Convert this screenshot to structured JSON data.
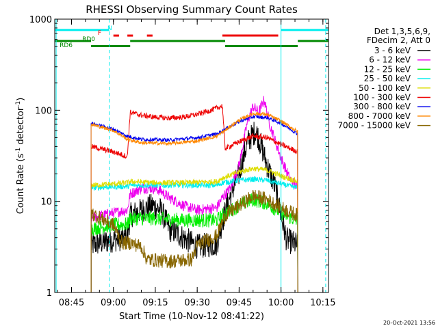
{
  "chart_data": {
    "type": "line",
    "title": "RHESSI Observing Summary Count Rates",
    "xlabel": "Start Time (10-Nov-12 08:41:22)",
    "ylabel_main": "Count Rate (s",
    "ylabel_sup1": "-1",
    "ylabel_mid": " detector",
    "ylabel_sup2": "-1",
    "ylabel_end": ")",
    "y_scale": "log",
    "ylim": [
      1,
      1000
    ],
    "xlim": [
      "08:39",
      "10:17"
    ],
    "x_ticks": [
      "08:45",
      "09:00",
      "09:15",
      "09:30",
      "09:45",
      "10:00",
      "10:15"
    ],
    "y_ticks": [
      "1",
      "10",
      "100",
      "1000"
    ],
    "timestamp": "20-Oct-2021 13:56",
    "legend": {
      "placement": "right",
      "header": [
        "Det 1,3,5,6,9,",
        "FDecim 2, Att 0"
      ],
      "entries": [
        {
          "label": "3 - 6 keV",
          "color": "#000000"
        },
        {
          "label": "6 - 12 keV",
          "color": "#ee00ee"
        },
        {
          "label": "12 - 25 keV",
          "color": "#00ee00"
        },
        {
          "label": "25 - 50 keV",
          "color": "#00eeee"
        },
        {
          "label": "50 - 100 keV",
          "color": "#dddd00"
        },
        {
          "label": "100 - 300 keV",
          "color": "#ee0000"
        },
        {
          "label": "300 - 800 keV",
          "color": "#0000ee"
        },
        {
          "label": "800 - 7000 keV",
          "color": "#ff8800"
        },
        {
          "label": "7000 - 15000 keV",
          "color": "#886600"
        }
      ]
    },
    "flags": [
      {
        "label": "N",
        "color": "#00eeee",
        "level": 760,
        "segments": [
          [
            "08:39",
            "08:58.5"
          ],
          [
            "10:00",
            "10:17"
          ]
        ]
      },
      {
        "label": "F",
        "color": "#ee0000",
        "level": 660,
        "segments": [
          [
            "09:00",
            "09:02"
          ],
          [
            "09:05",
            "09:07"
          ],
          [
            "09:12",
            "09:14"
          ],
          [
            "09:39",
            "09:59"
          ]
        ]
      },
      {
        "label": "RD0",
        "color": "#008800",
        "level": 575,
        "segments": [
          [
            "08:39",
            "08:52"
          ],
          [
            "09:06",
            "09:40"
          ],
          [
            "10:06",
            "10:17"
          ]
        ]
      },
      {
        "label": "RD6",
        "color": "#008800",
        "level": 505,
        "segments": [
          [
            "08:52",
            "09:06"
          ],
          [
            "09:40",
            "10:06"
          ]
        ]
      }
    ],
    "markers": [
      {
        "time": "08:39.5",
        "color": "#00eeee",
        "style": "solid"
      },
      {
        "time": "08:58.5",
        "color": "#00eeee",
        "style": "dashed"
      },
      {
        "time": "10:00",
        "color": "#00eeee",
        "style": "solid"
      },
      {
        "time": "10:16",
        "color": "#00eeee",
        "style": "dashed"
      }
    ],
    "series": [
      {
        "name": "3 - 6 keV",
        "color": "#000000",
        "noise": 0.14,
        "points": [
          [
            "08:52",
            "3.3"
          ],
          [
            "09:00",
            "3.8"
          ],
          [
            "09:05",
            "4.0"
          ],
          [
            "09:06",
            "7"
          ],
          [
            "09:10",
            "8"
          ],
          [
            "09:14",
            "9"
          ],
          [
            "09:17",
            "8"
          ],
          [
            "09:20",
            "5"
          ],
          [
            "09:25",
            "4"
          ],
          [
            "09:30",
            "3.2"
          ],
          [
            "09:37",
            "3.4"
          ],
          [
            "09:39",
            "6"
          ],
          [
            "09:42",
            "12"
          ],
          [
            "09:45",
            "20"
          ],
          [
            "09:48",
            "45"
          ],
          [
            "09:51",
            "60"
          ],
          [
            "09:53",
            "40"
          ],
          [
            "09:55",
            "25"
          ],
          [
            "09:58",
            "14"
          ],
          [
            "10:00",
            "7"
          ],
          [
            "10:02",
            "3.8"
          ],
          [
            "10:06",
            "3.3"
          ]
        ]
      },
      {
        "name": "6 - 12 keV",
        "color": "#ee00ee",
        "noise": 0.06,
        "points": [
          [
            "08:52",
            "6.6"
          ],
          [
            "09:00",
            "7.5"
          ],
          [
            "09:05",
            "8"
          ],
          [
            "09:06",
            "12"
          ],
          [
            "09:10",
            "14"
          ],
          [
            "09:14",
            "14"
          ],
          [
            "09:17",
            "13"
          ],
          [
            "09:20",
            "11"
          ],
          [
            "09:25",
            "9"
          ],
          [
            "09:30",
            "8"
          ],
          [
            "09:37",
            "8.5"
          ],
          [
            "09:39",
            "11"
          ],
          [
            "09:42",
            "14"
          ],
          [
            "09:45",
            "25"
          ],
          [
            "09:48",
            "75"
          ],
          [
            "09:50",
            "110"
          ],
          [
            "09:52",
            "95"
          ],
          [
            "09:54",
            "130"
          ],
          [
            "09:56",
            "70"
          ],
          [
            "09:58",
            "45"
          ],
          [
            "10:00",
            "30"
          ],
          [
            "10:03",
            "18"
          ],
          [
            "10:06",
            "14"
          ]
        ]
      },
      {
        "name": "12 - 25 keV",
        "color": "#00ee00",
        "noise": 0.08,
        "points": [
          [
            "08:52",
            "5"
          ],
          [
            "09:00",
            "5.5"
          ],
          [
            "09:05",
            "5.6"
          ],
          [
            "09:06",
            "6.5"
          ],
          [
            "09:15",
            "6.5"
          ],
          [
            "09:25",
            "6.2"
          ],
          [
            "09:37",
            "6.2"
          ],
          [
            "09:39",
            "7"
          ],
          [
            "09:45",
            "9"
          ],
          [
            "09:50",
            "10.5"
          ],
          [
            "09:55",
            "9.5"
          ],
          [
            "10:00",
            "7.5"
          ],
          [
            "10:06",
            "6"
          ]
        ]
      },
      {
        "name": "25 - 50 keV",
        "color": "#00eeee",
        "noise": 0.03,
        "points": [
          [
            "08:52",
            "14"
          ],
          [
            "09:00",
            "14.5"
          ],
          [
            "09:05",
            "14.5"
          ],
          [
            "09:06",
            "15"
          ],
          [
            "09:15",
            "15"
          ],
          [
            "09:25",
            "15"
          ],
          [
            "09:37",
            "15"
          ],
          [
            "09:39",
            "16"
          ],
          [
            "09:45",
            "17"
          ],
          [
            "09:50",
            "17.5"
          ],
          [
            "09:55",
            "17"
          ],
          [
            "10:00",
            "15.5"
          ],
          [
            "10:06",
            "14"
          ]
        ]
      },
      {
        "name": "50 - 100 keV",
        "color": "#dddd00",
        "noise": 0.03,
        "points": [
          [
            "08:52",
            "15"
          ],
          [
            "09:00",
            "15.5"
          ],
          [
            "09:05",
            "16"
          ],
          [
            "09:06",
            "16.5"
          ],
          [
            "09:15",
            "16"
          ],
          [
            "09:25",
            "16"
          ],
          [
            "09:37",
            "16.5"
          ],
          [
            "09:39",
            "18"
          ],
          [
            "09:45",
            "21"
          ],
          [
            "09:50",
            "23"
          ],
          [
            "09:55",
            "22"
          ],
          [
            "10:00",
            "19"
          ],
          [
            "10:06",
            "16.5"
          ]
        ]
      },
      {
        "name": "100 - 300 keV",
        "color": "#ee0000",
        "noise": 0.03,
        "points": [
          [
            "08:52",
            "40"
          ],
          [
            "09:00",
            "35"
          ],
          [
            "09:05",
            "31"
          ],
          [
            "09:06",
            "95"
          ],
          [
            "09:10",
            "88"
          ],
          [
            "09:15",
            "84"
          ],
          [
            "09:20",
            "82"
          ],
          [
            "09:25",
            "84"
          ],
          [
            "09:30",
            "90"
          ],
          [
            "09:35",
            "100"
          ],
          [
            "09:39",
            "112"
          ],
          [
            "09:40",
            "38"
          ],
          [
            "09:45",
            "45"
          ],
          [
            "09:50",
            "52"
          ],
          [
            "09:55",
            "50"
          ],
          [
            "10:00",
            "42"
          ],
          [
            "10:06",
            "35"
          ]
        ]
      },
      {
        "name": "300 - 800 keV",
        "color": "#0000ee",
        "noise": 0.02,
        "points": [
          [
            "08:52",
            "72"
          ],
          [
            "09:00",
            "62"
          ],
          [
            "09:05",
            "52"
          ],
          [
            "09:10",
            "48"
          ],
          [
            "09:20",
            "47"
          ],
          [
            "09:30",
            "50"
          ],
          [
            "09:37",
            "55"
          ],
          [
            "09:40",
            "62"
          ],
          [
            "09:45",
            "75"
          ],
          [
            "09:50",
            "85"
          ],
          [
            "09:55",
            "83"
          ],
          [
            "10:00",
            "72"
          ],
          [
            "10:06",
            "55"
          ]
        ]
      },
      {
        "name": "800 - 7000 keV",
        "color": "#ff8800",
        "noise": 0.02,
        "points": [
          [
            "08:52",
            "70"
          ],
          [
            "09:00",
            "60"
          ],
          [
            "09:05",
            "48"
          ],
          [
            "09:10",
            "44"
          ],
          [
            "09:20",
            "43"
          ],
          [
            "09:30",
            "46"
          ],
          [
            "09:37",
            "52"
          ],
          [
            "09:40",
            "60"
          ],
          [
            "09:45",
            "78"
          ],
          [
            "09:50",
            "92"
          ],
          [
            "09:55",
            "90"
          ],
          [
            "10:00",
            "76"
          ],
          [
            "10:06",
            "58"
          ]
        ]
      },
      {
        "name": "7000 - 15000 keV",
        "color": "#886600",
        "noise": 0.08,
        "points": [
          [
            "08:52",
            "7.5"
          ],
          [
            "09:00",
            "5.5"
          ],
          [
            "09:03",
            "3.5"
          ],
          [
            "09:06",
            "3.5"
          ],
          [
            "09:10",
            "3.2"
          ],
          [
            "09:12",
            "2.3"
          ],
          [
            "09:20",
            "2.2"
          ],
          [
            "09:28",
            "2.3"
          ],
          [
            "09:30",
            "3.3"
          ],
          [
            "09:37",
            "4.2"
          ],
          [
            "09:40",
            "7"
          ],
          [
            "09:45",
            "9"
          ],
          [
            "09:50",
            "11.5"
          ],
          [
            "09:55",
            "10.5"
          ],
          [
            "10:00",
            "8.5"
          ],
          [
            "10:06",
            "7"
          ]
        ]
      }
    ]
  }
}
